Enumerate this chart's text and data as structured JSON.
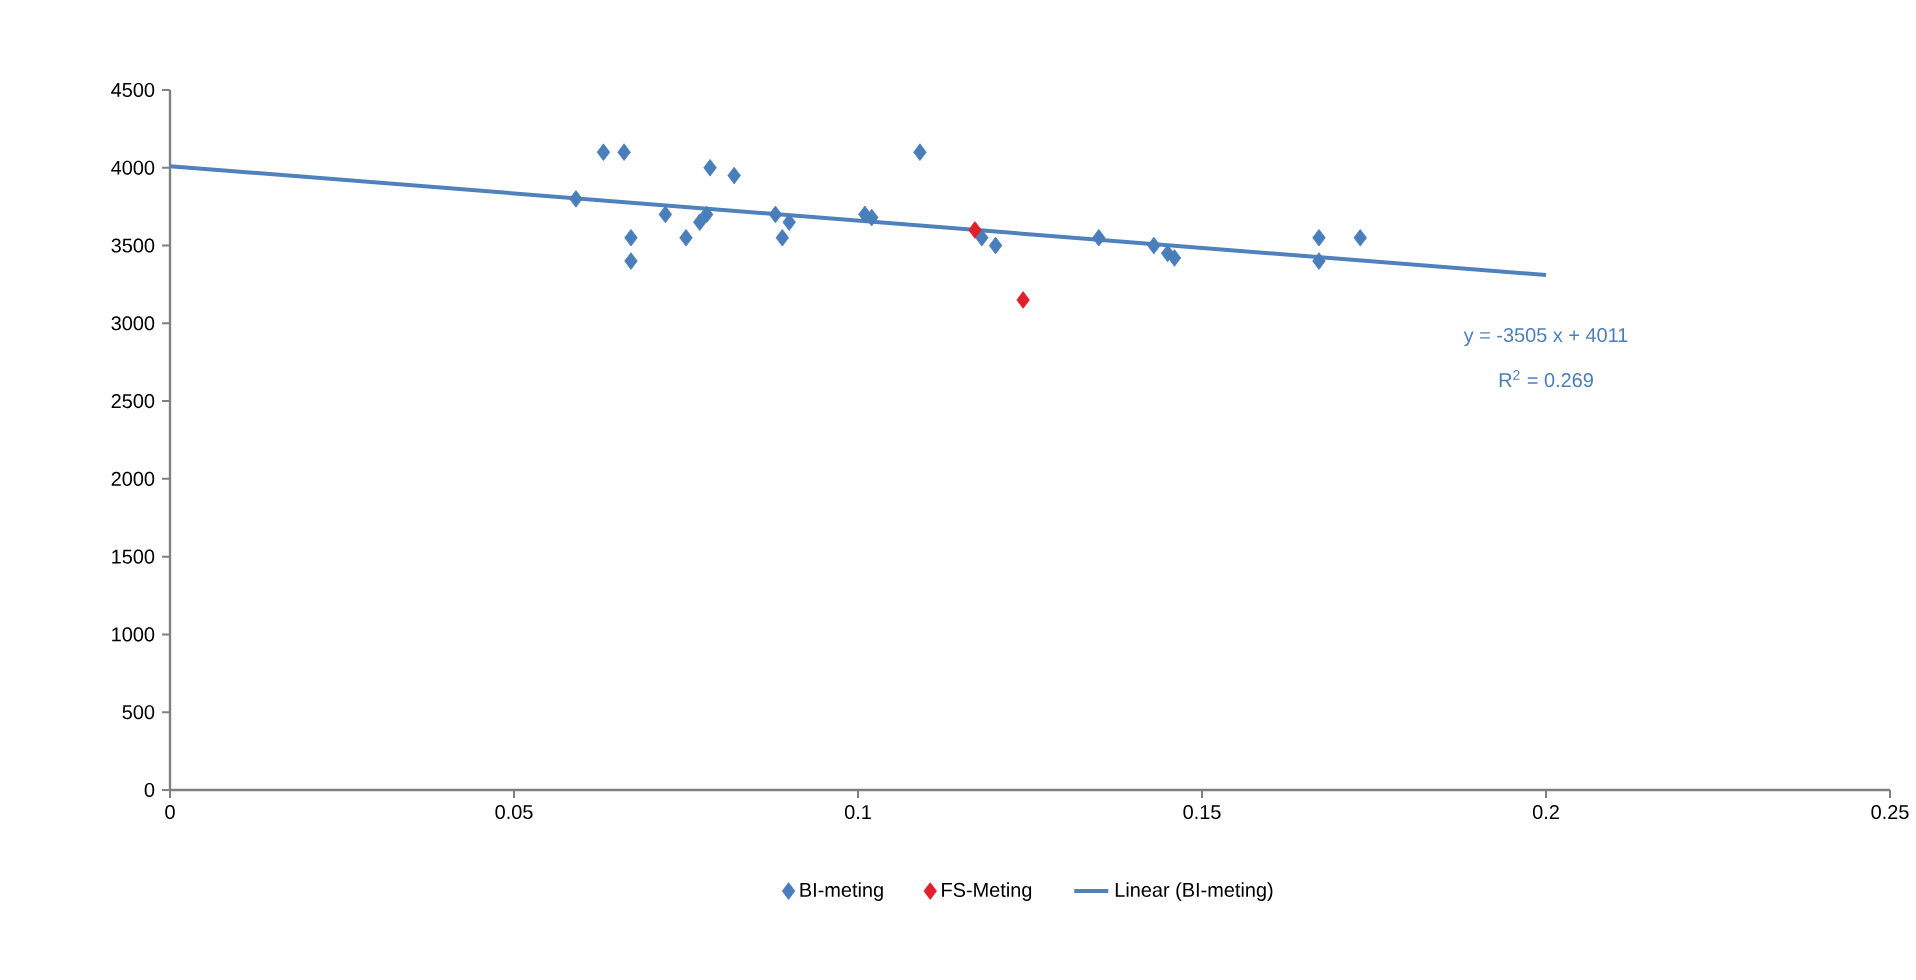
{
  "chart_data": {
    "type": "scatter",
    "xlim": [
      0,
      0.25
    ],
    "xticks": [
      0,
      0.05,
      0.1,
      0.15,
      0.2,
      0.25
    ],
    "ylim": [
      0,
      4500
    ],
    "yticks": [
      0,
      500,
      1000,
      1500,
      2000,
      2500,
      3000,
      3500,
      4000,
      4500
    ],
    "grid": false,
    "legend": "bottom",
    "annotations": [
      "y = -3505 x + 4011",
      "R$^{2}$ = 0.269"
    ],
    "series": [
      {
        "name": "BI-meting",
        "marker": "diamond",
        "color": "#4a7ebb",
        "x": [
          0.059,
          0.063,
          0.066,
          0.067,
          0.067,
          0.072,
          0.075,
          0.077,
          0.078,
          0.0785,
          0.082,
          0.088,
          0.089,
          0.09,
          0.101,
          0.102,
          0.109,
          0.118,
          0.12,
          0.135,
          0.143,
          0.145,
          0.146,
          0.167,
          0.167,
          0.173
        ],
        "values": [
          3800,
          4100,
          4100,
          3550,
          3400,
          3700,
          3550,
          3650,
          3700,
          4000,
          3950,
          3700,
          3550,
          3650,
          3700,
          3680,
          4100,
          3550,
          3500,
          3550,
          3500,
          3450,
          3420,
          3400,
          3550,
          3550
        ]
      },
      {
        "name": "FS-Meting",
        "marker": "diamond",
        "color": "#e0202a",
        "x": [
          0.117,
          0.124
        ],
        "values": [
          3600,
          3150
        ]
      },
      {
        "name": "Linear (BI-meting)",
        "type": "line",
        "marker": "none",
        "color": "#4f81bd",
        "x": [
          0,
          0.2
        ],
        "values": [
          4010,
          3310
        ]
      }
    ]
  }
}
